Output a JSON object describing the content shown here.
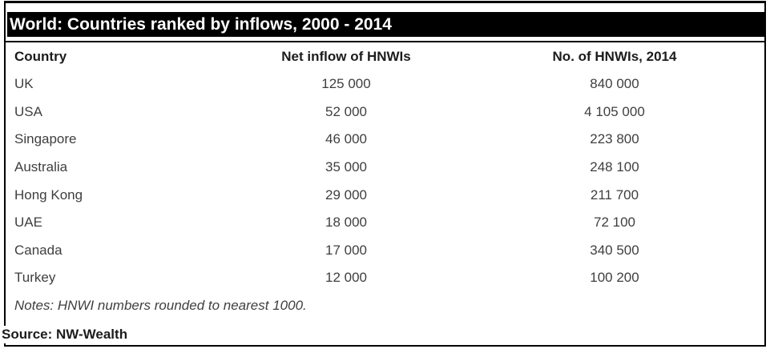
{
  "header": {
    "title": "World: Countries ranked by inflows, 2000 - 2014"
  },
  "table": {
    "columns": [
      "Country",
      "Net inflow of HNWIs",
      "No. of HNWIs, 2014"
    ],
    "rows": [
      [
        "UK",
        "125 000",
        "840 000"
      ],
      [
        "USA",
        "52 000",
        "4 105 000"
      ],
      [
        "Singapore",
        "46 000",
        "223 800"
      ],
      [
        "Australia",
        "35 000",
        "248 100"
      ],
      [
        "Hong Kong",
        "29 000",
        "211 700"
      ],
      [
        "UAE",
        "18 000",
        "72 100"
      ],
      [
        "Canada",
        "17 000",
        "340 500"
      ],
      [
        "Turkey",
        "12 000",
        "100 200"
      ]
    ],
    "notes": "Notes: HNWI numbers rounded to nearest 1000.",
    "source": "Source: NW-Wealth"
  },
  "colors": {
    "title_bar_bg": "#000000",
    "title_text": "#ffffff",
    "border": "#000000",
    "header_text": "#1c1c1c",
    "body_text": "#3f3f3f",
    "background": "#ffffff"
  },
  "chart_data": {
    "type": "table",
    "title": "World: Countries ranked by inflows, 2000 - 2014",
    "columns": [
      "Country",
      "Net inflow of HNWIs",
      "No. of HNWIs, 2014"
    ],
    "rows": [
      {
        "country": "UK",
        "net_inflow_of_hnwis": 125000,
        "no_of_hnwis_2014": 840000
      },
      {
        "country": "USA",
        "net_inflow_of_hnwis": 52000,
        "no_of_hnwis_2014": 4105000
      },
      {
        "country": "Singapore",
        "net_inflow_of_hnwis": 46000,
        "no_of_hnwis_2014": 223800
      },
      {
        "country": "Australia",
        "net_inflow_of_hnwis": 35000,
        "no_of_hnwis_2014": 248100
      },
      {
        "country": "Hong Kong",
        "net_inflow_of_hnwis": 29000,
        "no_of_hnwis_2014": 211700
      },
      {
        "country": "UAE",
        "net_inflow_of_hnwis": 18000,
        "no_of_hnwis_2014": 72100
      },
      {
        "country": "Canada",
        "net_inflow_of_hnwis": 17000,
        "no_of_hnwis_2014": 340500
      },
      {
        "country": "Turkey",
        "net_inflow_of_hnwis": 12000,
        "no_of_hnwis_2014": 100200
      }
    ],
    "notes": "Notes: HNWI numbers rounded to nearest 1000.",
    "source": "Source: NW-Wealth"
  }
}
